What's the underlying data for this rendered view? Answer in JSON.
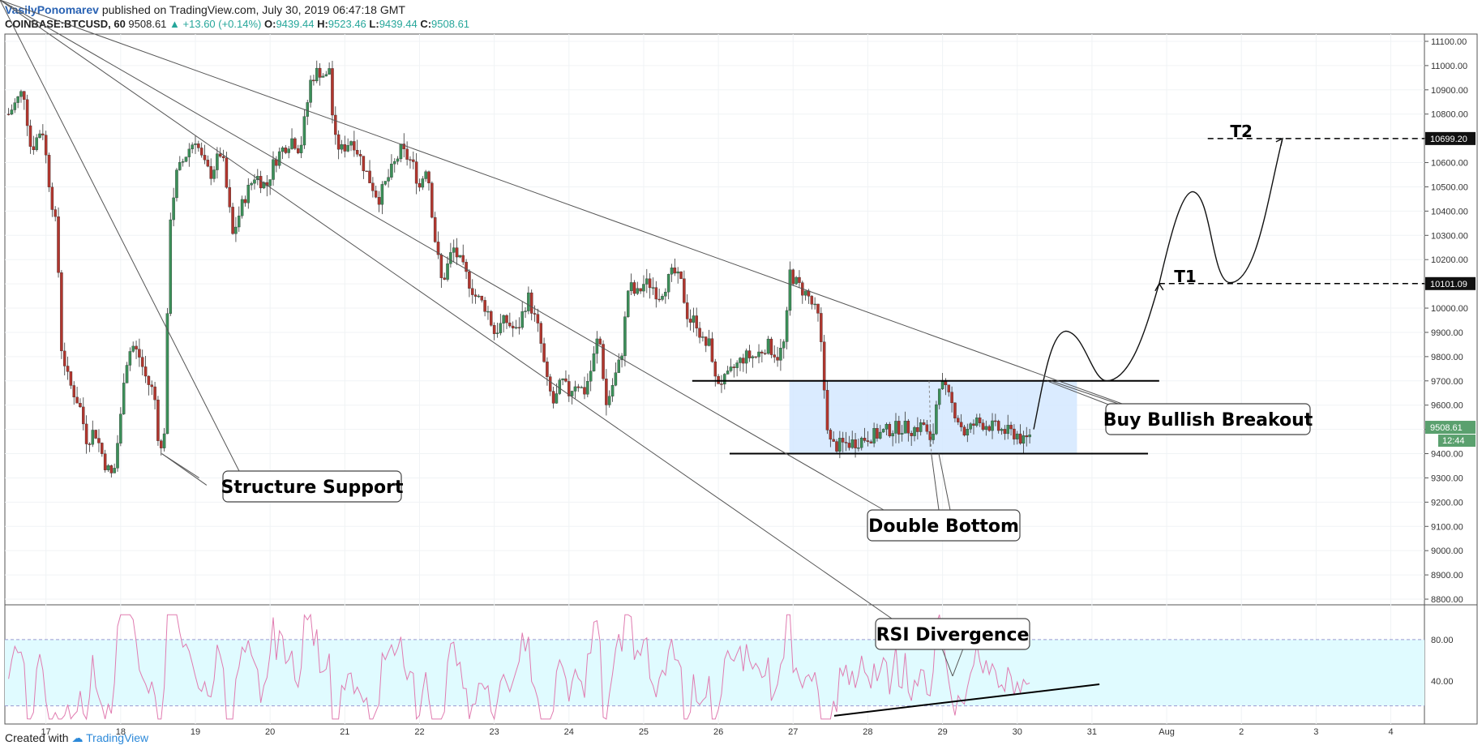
{
  "header": {
    "author": "VasilyPonomarev",
    "published": "published on TradingView.com, July 30, 2019 06:47:18 GMT",
    "symbol": "COINBASE:BTCUSD, 60",
    "last": "9508.61",
    "change": "▲ +13.60 (+0.14%)",
    "o_label": "O:",
    "o": "9439.44",
    "h_label": "H:",
    "h": "9523.46",
    "l_label": "L:",
    "l": "9439.44",
    "c_label": "C:",
    "c": "9508.61"
  },
  "footer": {
    "created_with": "Created with",
    "brand": "TradingView"
  },
  "colors": {
    "up": "#3c8f59",
    "down": "#b0362e",
    "rsi": "#e07bb0",
    "rsi_band": "#e0fbff",
    "box": "#d3e8ff"
  },
  "chart_data": {
    "type": "candlestick",
    "price_axis": {
      "ticks": [
        "11100.00",
        "11000.00",
        "10900.00",
        "10800.00",
        "10700.00",
        "10600.00",
        "10500.00",
        "10400.00",
        "10300.00",
        "10200.00",
        "10100.00",
        "10000.00",
        "9900.00",
        "9800.00",
        "9700.00",
        "9600.00",
        "9500.00",
        "9400.00",
        "9300.00",
        "9200.00",
        "9100.00",
        "9000.00",
        "8900.00",
        "8800.00"
      ],
      "range": [
        8780,
        11130
      ]
    },
    "time_axis": {
      "labels": [
        "17",
        "18",
        "19",
        "20",
        "21",
        "22",
        "23",
        "24",
        "25",
        "26",
        "27",
        "28",
        "29",
        "30",
        "31",
        "Aug",
        "2",
        "3",
        "4"
      ],
      "range": [
        16.45,
        35.45
      ]
    },
    "price_badges": [
      {
        "label": "10699.20",
        "value": 10699.2
      },
      {
        "label": "10101.09",
        "value": 10101.09
      },
      {
        "label": "9508.61",
        "value": 9508.61,
        "sub": "12:44"
      }
    ],
    "candles_anchor": [
      [
        16.5,
        10800
      ],
      [
        16.7,
        10900
      ],
      [
        16.8,
        10650
      ],
      [
        16.95,
        10750
      ],
      [
        17.05,
        10500
      ],
      [
        17.15,
        10300
      ],
      [
        17.2,
        9850
      ],
      [
        17.3,
        9700
      ],
      [
        17.45,
        9600
      ],
      [
        17.55,
        9450
      ],
      [
        17.65,
        9500
      ],
      [
        17.8,
        9350
      ],
      [
        17.9,
        9300
      ],
      [
        18.0,
        9550
      ],
      [
        18.05,
        9750
      ],
      [
        18.15,
        9850
      ],
      [
        18.25,
        9800
      ],
      [
        18.35,
        9700
      ],
      [
        18.45,
        9650
      ],
      [
        18.5,
        9480
      ],
      [
        18.55,
        9400
      ],
      [
        18.6,
        9550
      ],
      [
        18.65,
        10350
      ],
      [
        18.75,
        10550
      ],
      [
        18.9,
        10650
      ],
      [
        19.0,
        10700
      ],
      [
        19.1,
        10600
      ],
      [
        19.2,
        10550
      ],
      [
        19.35,
        10650
      ],
      [
        19.5,
        10300
      ],
      [
        19.65,
        10450
      ],
      [
        19.8,
        10550
      ],
      [
        19.95,
        10500
      ],
      [
        20.05,
        10600
      ],
      [
        20.15,
        10650
      ],
      [
        20.3,
        10700
      ],
      [
        20.4,
        10650
      ],
      [
        20.55,
        10950
      ],
      [
        20.65,
        10980
      ],
      [
        20.75,
        10950
      ],
      [
        20.8,
        11000
      ],
      [
        20.85,
        10700
      ],
      [
        20.95,
        10650
      ],
      [
        21.1,
        10700
      ],
      [
        21.3,
        10550
      ],
      [
        21.45,
        10450
      ],
      [
        21.6,
        10550
      ],
      [
        21.75,
        10650
      ],
      [
        21.9,
        10600
      ],
      [
        22.0,
        10500
      ],
      [
        22.1,
        10600
      ],
      [
        22.2,
        10300
      ],
      [
        22.3,
        10100
      ],
      [
        22.45,
        10250
      ],
      [
        22.6,
        10150
      ],
      [
        22.75,
        10050
      ],
      [
        22.9,
        10000
      ],
      [
        23.0,
        9900
      ],
      [
        23.15,
        9950
      ],
      [
        23.3,
        9900
      ],
      [
        23.45,
        10050
      ],
      [
        23.6,
        9900
      ],
      [
        23.7,
        9700
      ],
      [
        23.8,
        9600
      ],
      [
        23.9,
        9700
      ],
      [
        24.0,
        9650
      ],
      [
        24.1,
        9700
      ],
      [
        24.2,
        9650
      ],
      [
        24.3,
        9750
      ],
      [
        24.4,
        9900
      ],
      [
        24.5,
        9600
      ],
      [
        24.6,
        9700
      ],
      [
        24.7,
        9800
      ],
      [
        24.8,
        10100
      ],
      [
        24.9,
        10050
      ],
      [
        25.0,
        10100
      ],
      [
        25.1,
        10100
      ],
      [
        25.2,
        10050
      ],
      [
        25.3,
        10100
      ],
      [
        25.4,
        10150
      ],
      [
        25.5,
        10100
      ],
      [
        25.6,
        9950
      ],
      [
        25.7,
        9950
      ],
      [
        25.8,
        9850
      ],
      [
        25.9,
        9850
      ],
      [
        25.95,
        9700
      ],
      [
        26.0,
        9700
      ],
      [
        26.1,
        9700
      ],
      [
        26.2,
        9750
      ],
      [
        26.35,
        9800
      ],
      [
        26.5,
        9800
      ],
      [
        26.65,
        9850
      ],
      [
        26.8,
        9800
      ],
      [
        26.9,
        9870
      ],
      [
        26.95,
        10150
      ],
      [
        27.05,
        10100
      ],
      [
        27.2,
        10050
      ],
      [
        27.35,
        9950
      ],
      [
        27.42,
        9650
      ],
      [
        27.48,
        9450
      ],
      [
        27.55,
        9430
      ],
      [
        27.7,
        9440
      ],
      [
        27.85,
        9450
      ],
      [
        28.0,
        9470
      ],
      [
        28.15,
        9480
      ],
      [
        28.3,
        9500
      ],
      [
        28.45,
        9510
      ],
      [
        28.6,
        9500
      ],
      [
        28.75,
        9520
      ],
      [
        28.85,
        9420
      ],
      [
        28.95,
        9700
      ],
      [
        29.05,
        9650
      ],
      [
        29.2,
        9550
      ],
      [
        29.3,
        9480
      ],
      [
        29.45,
        9530
      ],
      [
        29.6,
        9520
      ],
      [
        29.75,
        9500
      ],
      [
        29.85,
        9490
      ],
      [
        30.0,
        9480
      ],
      [
        30.1,
        9440
      ],
      [
        30.2,
        9508
      ]
    ],
    "rsi": {
      "levels": [
        "80.00",
        "40.00"
      ],
      "upper": 70,
      "lower": 30,
      "range": [
        20,
        90
      ]
    },
    "annotations": {
      "structure_support": "Structure Support",
      "double_bottom": "Double Bottom",
      "buy_breakout": "Buy Bullish Breakout",
      "rsi_divergence": "RSI Divergence",
      "t1": "T1",
      "t2": "T2",
      "resistance": 9700,
      "support": 9400,
      "t1_level": 10101.09,
      "t2_level": 10699.2
    }
  }
}
